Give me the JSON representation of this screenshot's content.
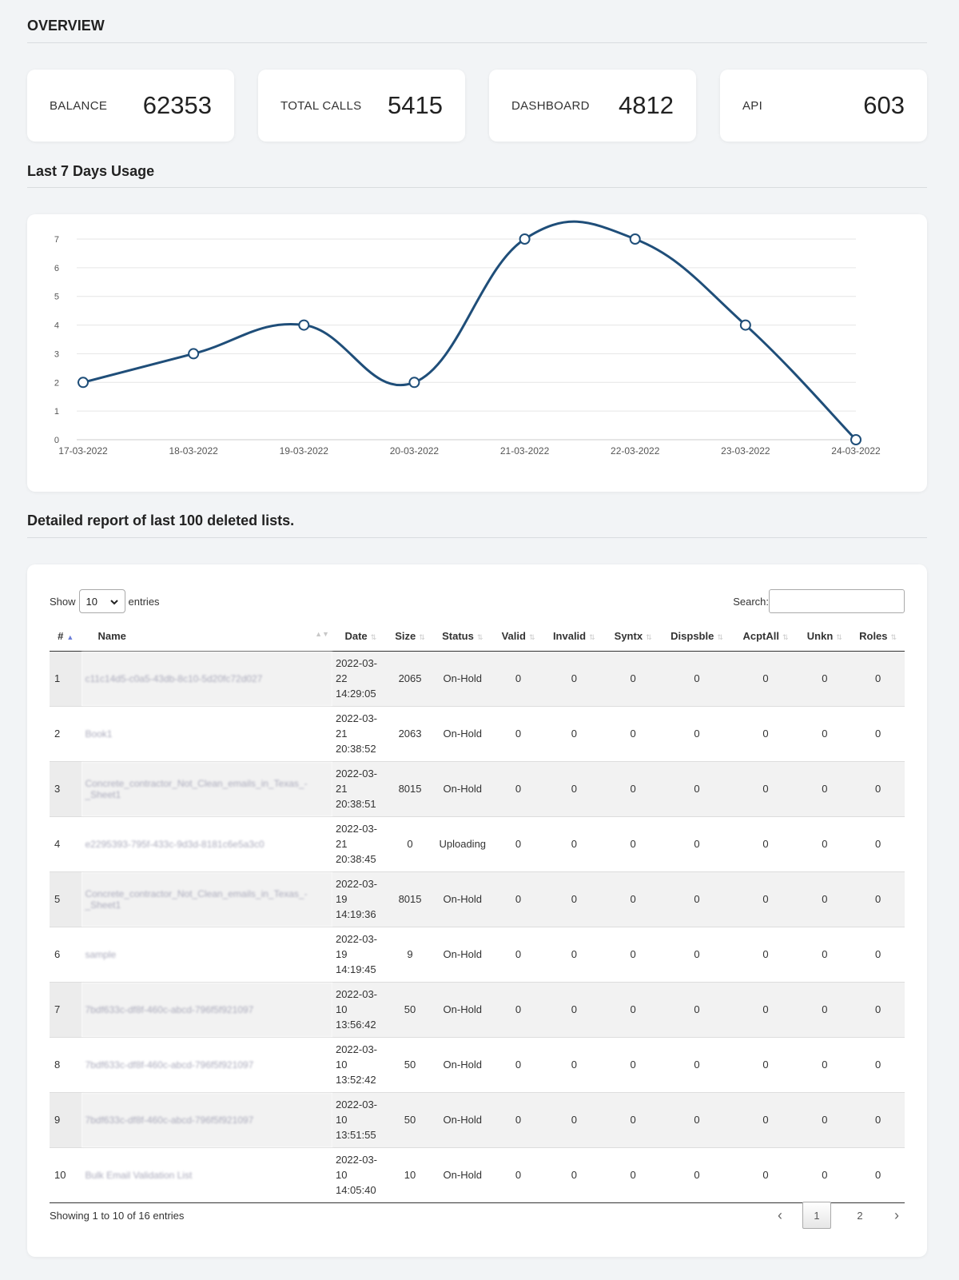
{
  "overview": {
    "title": "OVERVIEW",
    "stats": [
      {
        "label": "BALANCE",
        "value": "62353"
      },
      {
        "label": "TOTAL CALLS",
        "value": "5415"
      },
      {
        "label": "DASHBOARD",
        "value": "4812"
      },
      {
        "label": "API",
        "value": "603"
      }
    ]
  },
  "usage": {
    "title": "Last 7 Days Usage"
  },
  "chart_data": {
    "type": "line",
    "categories": [
      "17-03-2022",
      "18-03-2022",
      "19-03-2022",
      "20-03-2022",
      "21-03-2022",
      "22-03-2022",
      "23-03-2022",
      "24-03-2022"
    ],
    "values": [
      2,
      3,
      4,
      2,
      7,
      7,
      4,
      0
    ],
    "ylim": [
      0,
      7
    ],
    "yticks": [
      "0",
      "1",
      "2",
      "3",
      "4",
      "5",
      "6",
      "7"
    ],
    "grid": true,
    "line_color": "#1f4e79"
  },
  "report": {
    "title": "Detailed report of last 100 deleted lists.",
    "show_label": "Show",
    "entries_value": "10",
    "entries_label": "entries",
    "search_label": "Search:",
    "search_value": "",
    "columns": [
      "#",
      "Name",
      "Date",
      "Size",
      "Status",
      "Valid",
      "Invalid",
      "Syntx",
      "Dispsble",
      "AcptAll",
      "Unkn",
      "Roles"
    ],
    "rows": [
      {
        "idx": "1",
        "name": "c11c14d5-c0a5-43db-8c10-5d20fc72d027",
        "date1": "2022-03-",
        "date2": "22",
        "date3": "14:29:05",
        "size": "2065",
        "status": "On-Hold",
        "valid": "0",
        "invalid": "0",
        "syntx": "0",
        "dispsble": "0",
        "acptall": "0",
        "unkn": "0",
        "roles": "0"
      },
      {
        "idx": "2",
        "name": "Book1",
        "date1": "2022-03-",
        "date2": "21",
        "date3": "20:38:52",
        "size": "2063",
        "status": "On-Hold",
        "valid": "0",
        "invalid": "0",
        "syntx": "0",
        "dispsble": "0",
        "acptall": "0",
        "unkn": "0",
        "roles": "0"
      },
      {
        "idx": "3",
        "name": "Concrete_contractor_Not_Clean_emails_in_Texas_-_Sheet1",
        "date1": "2022-03-",
        "date2": "21",
        "date3": "20:38:51",
        "size": "8015",
        "status": "On-Hold",
        "valid": "0",
        "invalid": "0",
        "syntx": "0",
        "dispsble": "0",
        "acptall": "0",
        "unkn": "0",
        "roles": "0"
      },
      {
        "idx": "4",
        "name": "e2295393-795f-433c-9d3d-8181c6e5a3c0",
        "date1": "2022-03-",
        "date2": "21",
        "date3": "20:38:45",
        "size": "0",
        "status": "Uploading",
        "valid": "0",
        "invalid": "0",
        "syntx": "0",
        "dispsble": "0",
        "acptall": "0",
        "unkn": "0",
        "roles": "0"
      },
      {
        "idx": "5",
        "name": "Concrete_contractor_Not_Clean_emails_in_Texas_-_Sheet1",
        "date1": "2022-03-",
        "date2": "19",
        "date3": "14:19:36",
        "size": "8015",
        "status": "On-Hold",
        "valid": "0",
        "invalid": "0",
        "syntx": "0",
        "dispsble": "0",
        "acptall": "0",
        "unkn": "0",
        "roles": "0"
      },
      {
        "idx": "6",
        "name": "sample",
        "date1": "2022-03-",
        "date2": "19",
        "date3": "14:19:45",
        "size": "9",
        "status": "On-Hold",
        "valid": "0",
        "invalid": "0",
        "syntx": "0",
        "dispsble": "0",
        "acptall": "0",
        "unkn": "0",
        "roles": "0"
      },
      {
        "idx": "7",
        "name": "7bdf633c-df8f-460c-abcd-796f5f921097",
        "date1": "2022-03-",
        "date2": "10",
        "date3": "13:56:42",
        "size": "50",
        "status": "On-Hold",
        "valid": "0",
        "invalid": "0",
        "syntx": "0",
        "dispsble": "0",
        "acptall": "0",
        "unkn": "0",
        "roles": "0"
      },
      {
        "idx": "8",
        "name": "7bdf633c-df8f-460c-abcd-796f5f921097",
        "date1": "2022-03-",
        "date2": "10",
        "date3": "13:52:42",
        "size": "50",
        "status": "On-Hold",
        "valid": "0",
        "invalid": "0",
        "syntx": "0",
        "dispsble": "0",
        "acptall": "0",
        "unkn": "0",
        "roles": "0"
      },
      {
        "idx": "9",
        "name": "7bdf633c-df8f-460c-abcd-796f5f921097",
        "date1": "2022-03-",
        "date2": "10",
        "date3": "13:51:55",
        "size": "50",
        "status": "On-Hold",
        "valid": "0",
        "invalid": "0",
        "syntx": "0",
        "dispsble": "0",
        "acptall": "0",
        "unkn": "0",
        "roles": "0"
      },
      {
        "idx": "10",
        "name": "Bulk Email Validation List",
        "date1": "2022-03-",
        "date2": "10",
        "date3": "14:05:40",
        "size": "10",
        "status": "On-Hold",
        "valid": "0",
        "invalid": "0",
        "syntx": "0",
        "dispsble": "0",
        "acptall": "0",
        "unkn": "0",
        "roles": "0"
      }
    ],
    "info": "Showing 1 to 10 of 16 entries",
    "pages": [
      "1",
      "2"
    ],
    "current_page": "1"
  }
}
